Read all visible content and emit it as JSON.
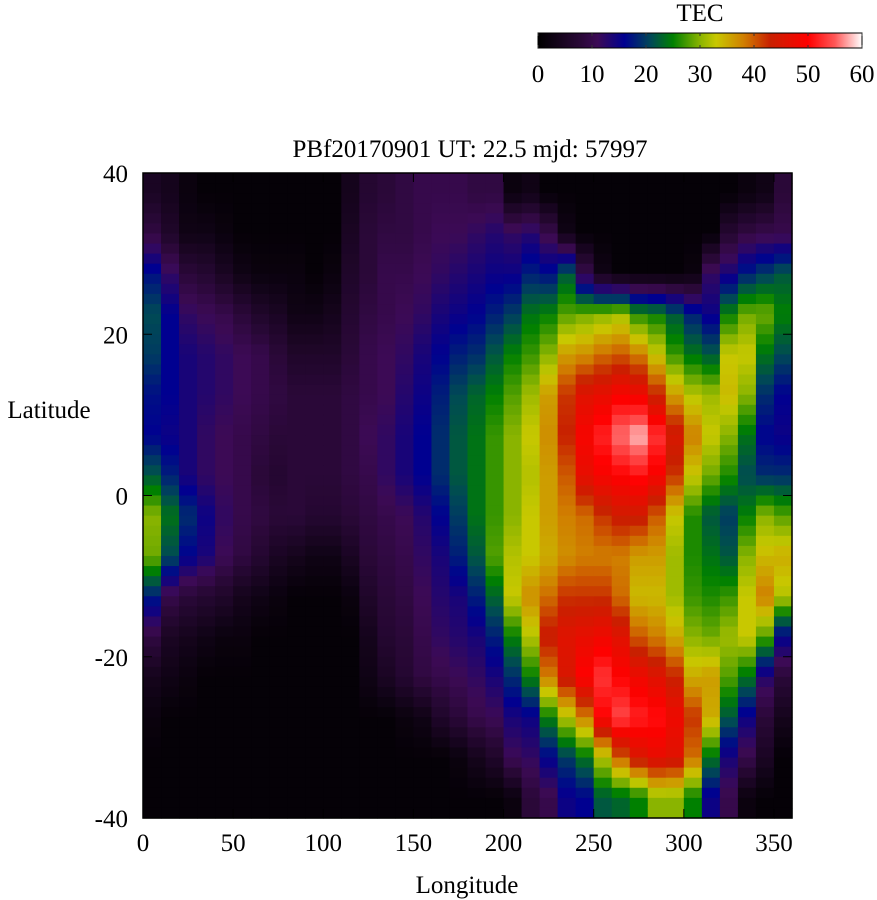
{
  "chart_data": {
    "type": "heatmap",
    "title": "PBf20170901  UT: 22.5  mjd: 57997",
    "xlabel": "Longitude",
    "ylabel": "Latitude",
    "xlim": [
      0,
      360
    ],
    "ylim": [
      -40,
      40
    ],
    "x_ticks": [
      "0",
      "50",
      "100",
      "150",
      "200",
      "250",
      "300",
      "350"
    ],
    "x_tick_values": [
      0,
      50,
      100,
      150,
      200,
      250,
      300,
      350
    ],
    "y_ticks": [
      "40",
      "20",
      "0",
      "-20",
      "-40"
    ],
    "y_tick_values": [
      40,
      20,
      0,
      -20,
      -40
    ],
    "grid": false,
    "colorbar": {
      "label": "TEC",
      "range": [
        0,
        60
      ],
      "ticks": [
        "0",
        "10",
        "20",
        "30",
        "40",
        "50",
        "60"
      ],
      "tick_values": [
        0,
        10,
        20,
        30,
        40,
        50,
        60
      ],
      "placement": "top-right",
      "colormap_stops": [
        [
          0,
          "#000000"
        ],
        [
          8,
          "#2a0838"
        ],
        [
          11,
          "#3c0a55"
        ],
        [
          16,
          "#000090"
        ],
        [
          21,
          "#004a55"
        ],
        [
          25,
          "#008000"
        ],
        [
          30,
          "#8ab400"
        ],
        [
          33,
          "#c8c800"
        ],
        [
          38,
          "#d08000"
        ],
        [
          43,
          "#c82000"
        ],
        [
          50,
          "#ff0000"
        ],
        [
          55,
          "#ff5858"
        ],
        [
          60,
          "#ffffff"
        ]
      ]
    },
    "longitude_centers": [
      5,
      15,
      25,
      35,
      45,
      55,
      65,
      75,
      85,
      95,
      105,
      115,
      125,
      135,
      145,
      155,
      165,
      175,
      185,
      195,
      205,
      215,
      225,
      235,
      245,
      255,
      265,
      275,
      285,
      295,
      305,
      315,
      325,
      335,
      345,
      355
    ],
    "latitude_centers": [
      37.5,
      32.5,
      27.5,
      22.5,
      17.5,
      12.5,
      7.5,
      2.5,
      -2.5,
      -7.5,
      -12.5,
      -17.5,
      -22.5,
      -27.5,
      -32.5,
      -37.5
    ],
    "values_by_longitude": [
      [
        5,
        9,
        17,
        21,
        20,
        17,
        16,
        22,
        30,
        29,
        18,
        9,
        4,
        2,
        1,
        1
      ],
      [
        4,
        6,
        12,
        16,
        16,
        16,
        15,
        18,
        24,
        21,
        10,
        5,
        3,
        1,
        1,
        1
      ],
      [
        2,
        3,
        8,
        12,
        14,
        14,
        14,
        14,
        19,
        16,
        8,
        4,
        2,
        1,
        1,
        1
      ],
      [
        1,
        3,
        7,
        11,
        13,
        13,
        12,
        12,
        15,
        14,
        7,
        3,
        1,
        1,
        1,
        1
      ],
      [
        1,
        2,
        5,
        10,
        12,
        12,
        11,
        11,
        12,
        11,
        6,
        2,
        1,
        1,
        1,
        1
      ],
      [
        1,
        1,
        3,
        8,
        11,
        11,
        10,
        10,
        10,
        9,
        4,
        2,
        1,
        1,
        1,
        1
      ],
      [
        1,
        1,
        2,
        6,
        10,
        10,
        9,
        8,
        9,
        7,
        3,
        1,
        1,
        1,
        1,
        1
      ],
      [
        1,
        1,
        2,
        5,
        8,
        9,
        8,
        7,
        8,
        5,
        2,
        1,
        1,
        1,
        1,
        1
      ],
      [
        1,
        1,
        2,
        3,
        6,
        8,
        8,
        8,
        8,
        4,
        1,
        1,
        1,
        1,
        1,
        1
      ],
      [
        1,
        1,
        1,
        3,
        6,
        8,
        8,
        8,
        7,
        3,
        1,
        1,
        1,
        1,
        1,
        1
      ],
      [
        1,
        1,
        2,
        4,
        6,
        8,
        8,
        8,
        7,
        3,
        1,
        1,
        1,
        1,
        1,
        1
      ],
      [
        4,
        5,
        6,
        7,
        8,
        9,
        9,
        9,
        8,
        5,
        2,
        1,
        1,
        1,
        1,
        1
      ],
      [
        7,
        8,
        8,
        9,
        10,
        10,
        11,
        10,
        9,
        8,
        6,
        4,
        3,
        1,
        1,
        1
      ],
      [
        8,
        9,
        10,
        10,
        11,
        11,
        12,
        12,
        10,
        9,
        8,
        7,
        5,
        1,
        1,
        1
      ],
      [
        9,
        9,
        10,
        11,
        12,
        13,
        14,
        14,
        11,
        10,
        9,
        8,
        7,
        2,
        1,
        1
      ],
      [
        10,
        10,
        11,
        12,
        14,
        15,
        16,
        16,
        13,
        12,
        11,
        10,
        9,
        3,
        1,
        1
      ],
      [
        10,
        11,
        12,
        14,
        16,
        18,
        19,
        19,
        16,
        14,
        13,
        12,
        10,
        6,
        1,
        1
      ],
      [
        10,
        11,
        13,
        15,
        18,
        21,
        22,
        22,
        20,
        18,
        14,
        13,
        11,
        8,
        2,
        1
      ],
      [
        9,
        12,
        14,
        16,
        19,
        23,
        24,
        24,
        24,
        22,
        18,
        14,
        12,
        10,
        4,
        1
      ],
      [
        9,
        13,
        15,
        18,
        22,
        25,
        27,
        27,
        27,
        28,
        23,
        18,
        14,
        11,
        6,
        1
      ],
      [
        2,
        12,
        15,
        20,
        25,
        28,
        30,
        30,
        30,
        32,
        33,
        25,
        19,
        14,
        11,
        2
      ],
      [
        3,
        13,
        18,
        24,
        27,
        31,
        33,
        32,
        33,
        33,
        37,
        32,
        25,
        15,
        12,
        8
      ],
      [
        1,
        10,
        17,
        25,
        30,
        36,
        37,
        36,
        36,
        35,
        39,
        44,
        38,
        25,
        16,
        10
      ],
      [
        1,
        3,
        22,
        28,
        36,
        42,
        43,
        40,
        38,
        37,
        42,
        46,
        45,
        32,
        20,
        15
      ],
      [
        1,
        1,
        10,
        29,
        37,
        46,
        49,
        47,
        39,
        38,
        42,
        47,
        50,
        38,
        24,
        16
      ],
      [
        1,
        1,
        3,
        30,
        39,
        47,
        52,
        49,
        42,
        38,
        42,
        48,
        53,
        50,
        32,
        22
      ],
      [
        1,
        1,
        1,
        31,
        40,
        49,
        56,
        50,
        44,
        38,
        39,
        46,
        50,
        54,
        40,
        23
      ],
      [
        1,
        1,
        1,
        26,
        38,
        48,
        58,
        51,
        44,
        36,
        34,
        40,
        48,
        52,
        45,
        25
      ],
      [
        1,
        1,
        1,
        25,
        33,
        43,
        53,
        49,
        40,
        36,
        34,
        38,
        46,
        51,
        47,
        30
      ],
      [
        1,
        1,
        1,
        22,
        27,
        36,
        45,
        42,
        33,
        31,
        31,
        35,
        43,
        48,
        46,
        30
      ],
      [
        1,
        1,
        2,
        18,
        24,
        32,
        38,
        33,
        26,
        26,
        27,
        30,
        35,
        42,
        39,
        25
      ],
      [
        1,
        1,
        12,
        15,
        22,
        31,
        33,
        29,
        22,
        24,
        26,
        29,
        36,
        35,
        24,
        15
      ],
      [
        1,
        7,
        14,
        25,
        33,
        34,
        30,
        26,
        20,
        22,
        27,
        31,
        28,
        22,
        14,
        10
      ],
      [
        2,
        9,
        18,
        29,
        33,
        30,
        24,
        21,
        25,
        30,
        33,
        33,
        24,
        15,
        10,
        2
      ],
      [
        3,
        10,
        20,
        29,
        24,
        19,
        16,
        19,
        30,
        34,
        38,
        28,
        13,
        8,
        5,
        1
      ],
      [
        8,
        10,
        22,
        25,
        21,
        16,
        15,
        19,
        28,
        35,
        32,
        16,
        8,
        4,
        1,
        1
      ]
    ]
  }
}
